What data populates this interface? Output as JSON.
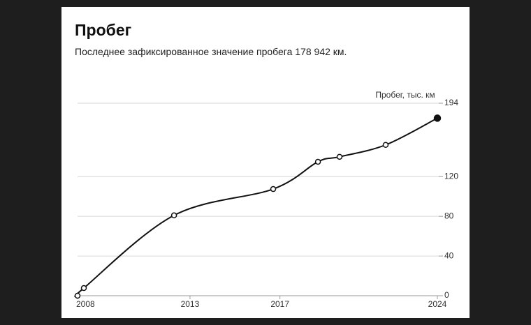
{
  "chart_data": {
    "type": "line",
    "title": "Пробег",
    "subtitle": "Последнее зафиксированное значение пробега 178 942 км.",
    "y_label": "Пробег, тыс. км",
    "x": [
      2008.0,
      2008.28,
      2012.29,
      2016.7,
      2018.69,
      2019.65,
      2021.7,
      2024.0
    ],
    "values": [
      0,
      7.7,
      81,
      107.5,
      135,
      140,
      152,
      178.942
    ],
    "color": "#111111",
    "xlim": [
      2008,
      2024
    ],
    "xticks": [
      2008,
      2013,
      2017,
      2024
    ],
    "ylim": [
      0,
      194
    ],
    "yticks": [
      0,
      40,
      80,
      120,
      194
    ],
    "grid": true
  }
}
